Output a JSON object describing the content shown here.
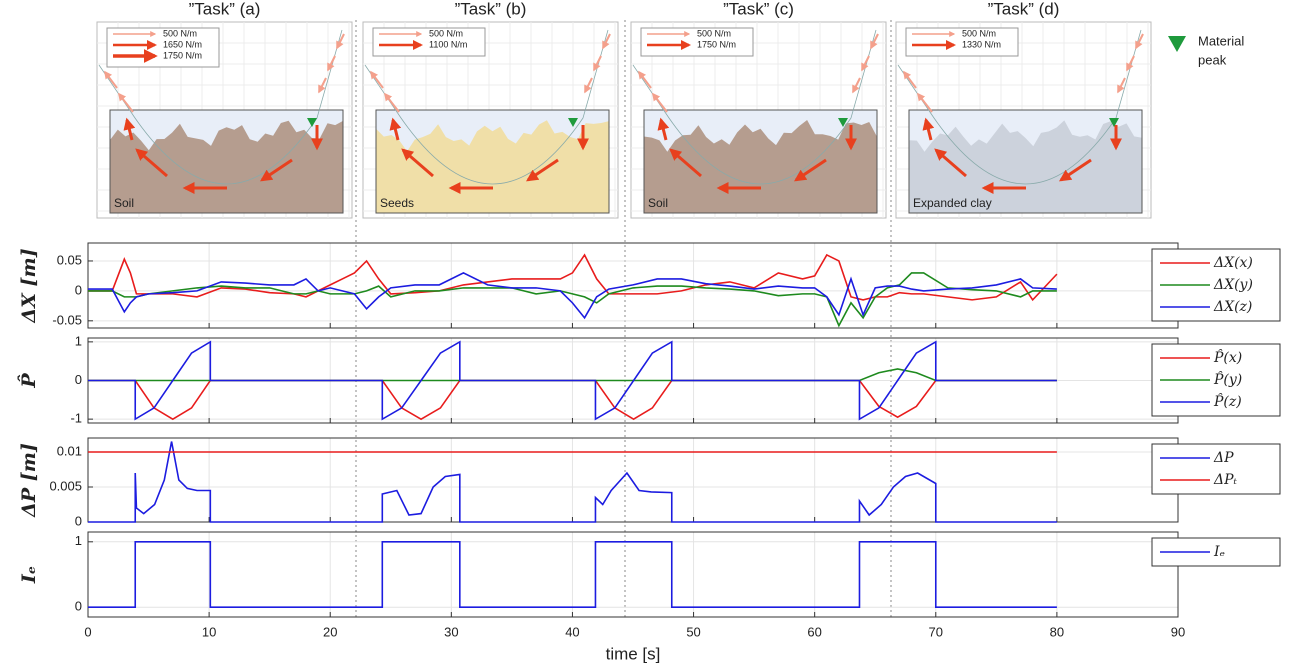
{
  "task_panels": [
    {
      "title": "”Task” (a)",
      "legend": [
        "500 N/m",
        "1650 N/m",
        "1750 N/m"
      ],
      "material": "Soil",
      "color": "#b59d8f"
    },
    {
      "title": "”Task” (b)",
      "legend": [
        "500 N/m",
        "1100 N/m"
      ],
      "material": "Seeds",
      "color": "#f0dfa8"
    },
    {
      "title": "”Task” (c)",
      "legend": [
        "500 N/m",
        "1750 N/m"
      ],
      "material": "Soil",
      "color": "#b59d8f"
    },
    {
      "title": "”Task” (d)",
      "legend": [
        "500 N/m",
        "1330 N/m"
      ],
      "material": "Expanded clay",
      "color": "#ccd2dc"
    }
  ],
  "peak_legend": [
    "Material",
    "peak"
  ],
  "chart_data": [
    {
      "type": "line",
      "ylabel": "ΔX [m]",
      "legend": "right",
      "grid": true,
      "xlim": [
        0,
        90
      ],
      "xticks": [
        0,
        10,
        20,
        30,
        40,
        50,
        60,
        70,
        80,
        90
      ],
      "ylim": [
        -0.062,
        0.08
      ],
      "yticks": [
        -0.05,
        0,
        0.05
      ],
      "x": [
        0,
        2,
        3,
        3.5,
        4,
        5,
        7,
        9,
        11,
        13,
        15,
        17,
        18,
        19,
        20,
        21,
        22,
        23,
        24,
        25,
        27,
        29,
        31,
        33,
        35,
        37,
        39,
        40,
        41,
        42,
        43,
        45,
        47,
        49,
        51,
        53,
        55,
        57,
        59,
        60,
        61,
        62,
        63,
        64,
        65,
        66,
        67,
        68,
        69,
        71,
        73,
        75,
        77,
        78,
        80
      ],
      "series": [
        {
          "name": "ΔX(x)",
          "color": "#e81c1c",
          "values": [
            0,
            0,
            0.053,
            0.03,
            -0.005,
            -0.005,
            -0.005,
            -0.01,
            0.005,
            0.003,
            -0.003,
            -0.005,
            -0.01,
            0,
            0.01,
            0.02,
            0.03,
            0.05,
            0.02,
            -0.005,
            -0.003,
            0,
            0.01,
            0.015,
            0.02,
            0.02,
            0.02,
            0.03,
            0.06,
            0.02,
            -0.005,
            -0.005,
            -0.005,
            0,
            0.01,
            0.015,
            0.005,
            0.03,
            0.02,
            0.025,
            0.06,
            0.05,
            -0.01,
            -0.015,
            -0.01,
            -0.01,
            -0.003,
            -0.005,
            -0.005,
            -0.01,
            -0.015,
            -0.01,
            0.015,
            -0.015,
            0.028
          ]
        },
        {
          "name": "ΔX(y)",
          "color": "#1e8a1e",
          "values": [
            0,
            0,
            -0.01,
            -0.01,
            -0.01,
            -0.005,
            0,
            0.005,
            0.008,
            0.005,
            0.005,
            -0.005,
            -0.005,
            0,
            -0.005,
            -0.005,
            -0.005,
            0,
            0.008,
            -0.01,
            0,
            0,
            0.005,
            0.005,
            0.005,
            -0.005,
            0,
            -0.005,
            -0.01,
            -0.02,
            -0.005,
            0.005,
            0.008,
            0.008,
            0.005,
            0.003,
            0,
            -0.008,
            -0.005,
            -0.005,
            -0.01,
            -0.058,
            -0.02,
            -0.045,
            -0.01,
            0.005,
            0.01,
            0.03,
            0.03,
            0.005,
            0.002,
            0,
            -0.01,
            0,
            0
          ]
        },
        {
          "name": "ΔX(z)",
          "color": "#1c1ce0",
          "values": [
            0.003,
            0.003,
            -0.035,
            -0.02,
            -0.01,
            -0.005,
            -0.003,
            0,
            0.015,
            0.013,
            0.01,
            0.01,
            0.02,
            0,
            0.005,
            0,
            -0.005,
            -0.03,
            -0.01,
            0.005,
            0.01,
            0.01,
            0.03,
            0.01,
            0.005,
            0.005,
            0,
            -0.02,
            -0.045,
            -0.01,
            0.003,
            0.01,
            0.02,
            0.02,
            0.012,
            0.008,
            0.003,
            0.008,
            0.005,
            0.005,
            -0.01,
            -0.04,
            0.02,
            -0.04,
            0.005,
            0.008,
            0.008,
            0.003,
            0,
            0.003,
            0.005,
            0.01,
            0.02,
            0.005,
            0.003
          ]
        }
      ]
    },
    {
      "type": "line",
      "ylabel": "P̂",
      "legend": "right",
      "grid": true,
      "xlim": [
        0,
        90
      ],
      "xticks": [
        0,
        10,
        20,
        30,
        40,
        50,
        60,
        70,
        80,
        90
      ],
      "ylim": [
        -1.1,
        1.1
      ],
      "yticks": [
        -1,
        0,
        1
      ],
      "x": [
        0,
        3.9,
        3.9,
        5.45,
        7,
        8.55,
        10.1,
        10.1,
        24.3,
        24.3,
        25.9,
        27.5,
        29.1,
        30.7,
        30.7,
        41.9,
        41.9,
        43.5,
        45.05,
        46.6,
        48.2,
        48.2,
        63.7,
        63.7,
        65.3,
        66.85,
        68.4,
        70,
        70,
        80
      ],
      "series": [
        {
          "name": "P̂(x)",
          "color": "#e81c1c",
          "values": [
            0,
            0,
            0,
            -0.71,
            -1,
            -0.71,
            0,
            0,
            0,
            0,
            -0.71,
            -1,
            -0.71,
            0,
            0,
            0,
            0,
            -0.71,
            -1,
            -0.71,
            0,
            0,
            0,
            0,
            -0.67,
            -0.95,
            -0.67,
            0,
            0,
            0
          ]
        },
        {
          "name": "P̂(y)",
          "color": "#1e8a1e",
          "values": [
            0,
            0,
            0,
            0,
            0,
            0,
            0,
            0,
            0,
            0,
            0,
            0,
            0,
            0,
            0,
            0,
            0,
            0,
            0,
            0,
            0,
            0,
            0,
            0,
            0.2,
            0.3,
            0.2,
            0,
            0,
            0
          ]
        },
        {
          "name": "P̂(z)",
          "color": "#1c1ce0",
          "values": [
            0,
            0,
            -1,
            -0.71,
            0,
            0.71,
            1,
            0,
            0,
            -1,
            -0.71,
            0,
            0.71,
            1,
            0,
            0,
            -1,
            -0.71,
            0,
            0.71,
            1,
            0,
            0,
            -1,
            -0.71,
            0,
            0.71,
            1,
            0,
            0
          ]
        }
      ]
    },
    {
      "type": "line",
      "ylabel": "ΔP [m]",
      "legend": "right",
      "grid": true,
      "xlim": [
        0,
        90
      ],
      "xticks": [
        0,
        10,
        20,
        30,
        40,
        50,
        60,
        70,
        80,
        90
      ],
      "ylim": [
        0,
        0.012
      ],
      "yticks": [
        0,
        0.005,
        0.01
      ],
      "x": [
        0,
        3.9,
        3.9,
        4.0,
        4.6,
        5.5,
        6.3,
        6.9,
        7.5,
        8.2,
        9,
        10.1,
        10.1,
        24.3,
        24.3,
        25.5,
        26.5,
        27.5,
        28.5,
        29.5,
        30.7,
        30.7,
        41.9,
        41.9,
        42.5,
        43.2,
        44.5,
        45.5,
        46.5,
        48.2,
        48.2,
        63.7,
        63.7,
        64.5,
        65.5,
        66.5,
        67.5,
        68.5,
        70,
        70,
        80
      ],
      "series": [
        {
          "name": "ΔP",
          "color": "#1c1ce0",
          "values": [
            0,
            0,
            0.007,
            0.002,
            0.0012,
            0.0025,
            0.006,
            0.0115,
            0.006,
            0.0048,
            0.0045,
            0.0045,
            0,
            0,
            0.004,
            0.0045,
            0.001,
            0.0012,
            0.005,
            0.0065,
            0.0068,
            0,
            0,
            0.0035,
            0.0025,
            0.0045,
            0.007,
            0.0045,
            0.0043,
            0.0042,
            0,
            0,
            0.003,
            0.001,
            0.0025,
            0.005,
            0.0065,
            0.007,
            0.0055,
            0,
            0
          ]
        },
        {
          "name": "ΔPₜ",
          "color": "#e81c1c",
          "values": [
            0.01,
            0.01,
            0.01,
            0.01,
            0.01,
            0.01,
            0.01,
            0.01,
            0.01,
            0.01,
            0.01,
            0.01,
            0.01,
            0.01,
            0.01,
            0.01,
            0.01,
            0.01,
            0.01,
            0.01,
            0.01,
            0.01,
            0.01,
            0.01,
            0.01,
            0.01,
            0.01,
            0.01,
            0.01,
            0.01,
            0.01,
            0.01,
            0.01,
            0.01,
            0.01,
            0.01,
            0.01,
            0.01,
            0.01,
            0.01,
            0.01
          ]
        }
      ]
    },
    {
      "type": "line",
      "ylabel": "Iₑ",
      "legend": "right",
      "grid": true,
      "xlabel": "time [s]",
      "xlim": [
        0,
        90
      ],
      "xticks": [
        0,
        10,
        20,
        30,
        40,
        50,
        60,
        70,
        80,
        90
      ],
      "ylim": [
        -0.15,
        1.15
      ],
      "yticks": [
        0,
        1
      ],
      "x": [
        0,
        3.9,
        3.9,
        10.1,
        10.1,
        24.3,
        24.3,
        30.7,
        30.7,
        41.9,
        41.9,
        48.2,
        48.2,
        63.7,
        63.7,
        70,
        70,
        80
      ],
      "series": [
        {
          "name": "Iₑ",
          "color": "#1c1ce0",
          "values": [
            0,
            0,
            1,
            1,
            0,
            0,
            1,
            1,
            0,
            0,
            1,
            1,
            0,
            0,
            1,
            1,
            0,
            0
          ]
        }
      ]
    }
  ]
}
